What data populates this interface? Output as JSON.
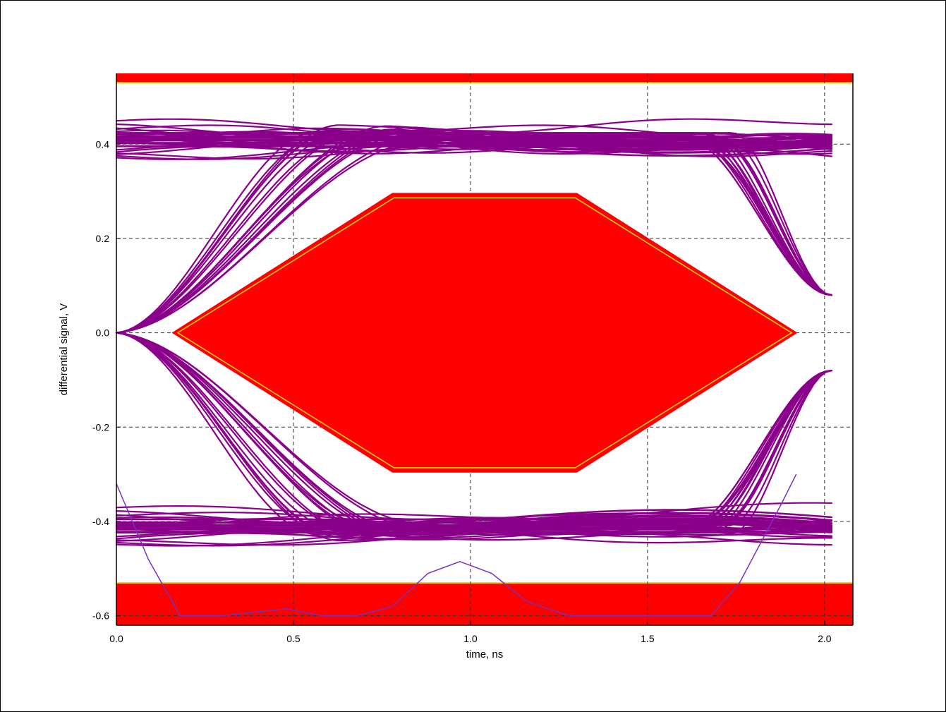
{
  "chart_data": {
    "type": "line",
    "title": "",
    "xlabel": "time, ns",
    "ylabel": "differential signal, V",
    "xlim": [
      0.0,
      2.08
    ],
    "ylim": [
      -0.62,
      0.55
    ],
    "x_ticks": [
      {
        "value": 0.0,
        "label": "0.0"
      },
      {
        "value": 0.5,
        "label": "0.5"
      },
      {
        "value": 1.0,
        "label": "1.0"
      },
      {
        "value": 1.5,
        "label": "1.5"
      },
      {
        "value": 2.0,
        "label": "2.0"
      }
    ],
    "y_ticks": [
      {
        "value": 0.4,
        "label": "0.4"
      },
      {
        "value": 0.2,
        "label": "0.2"
      },
      {
        "value": 0.0,
        "label": "0.0"
      },
      {
        "value": -0.2,
        "label": "-0.2"
      },
      {
        "value": -0.4,
        "label": "-0.4"
      },
      {
        "value": -0.6,
        "label": "-0.6"
      }
    ],
    "grid": true,
    "legend": "none",
    "colors": {
      "mask": "#ff0000",
      "mask_outline": "#ffd700",
      "eye_traces": "#8b008b",
      "bathtub": "#7b2fbf",
      "grid": "#333333"
    },
    "mask_regions": {
      "upper_bar": {
        "y_from": 0.53,
        "y_to": 0.55
      },
      "lower_bar": {
        "y_from": -0.62,
        "y_to": -0.53
      },
      "eye_hexagon": [
        [
          0.16,
          0.0
        ],
        [
          0.78,
          0.295
        ],
        [
          1.3,
          0.295
        ],
        [
          1.92,
          0.0
        ],
        [
          1.3,
          -0.295
        ],
        [
          0.78,
          -0.295
        ]
      ]
    },
    "eye_diagram": {
      "high_level": 0.41,
      "low_level": -0.41,
      "crossing_times": [
        0.0,
        2.02
      ]
    },
    "bathtub_curve": {
      "x": [
        0.0,
        0.09,
        0.18,
        0.3,
        0.48,
        0.58,
        0.68,
        0.78,
        0.88,
        0.97,
        1.06,
        1.16,
        1.28,
        1.68,
        1.76,
        1.88,
        1.92
      ],
      "y": [
        -0.32,
        -0.48,
        -0.6,
        -0.6,
        -0.585,
        -0.6,
        -0.6,
        -0.58,
        -0.51,
        -0.485,
        -0.51,
        -0.57,
        -0.6,
        -0.6,
        -0.53,
        -0.36,
        -0.3
      ]
    }
  }
}
